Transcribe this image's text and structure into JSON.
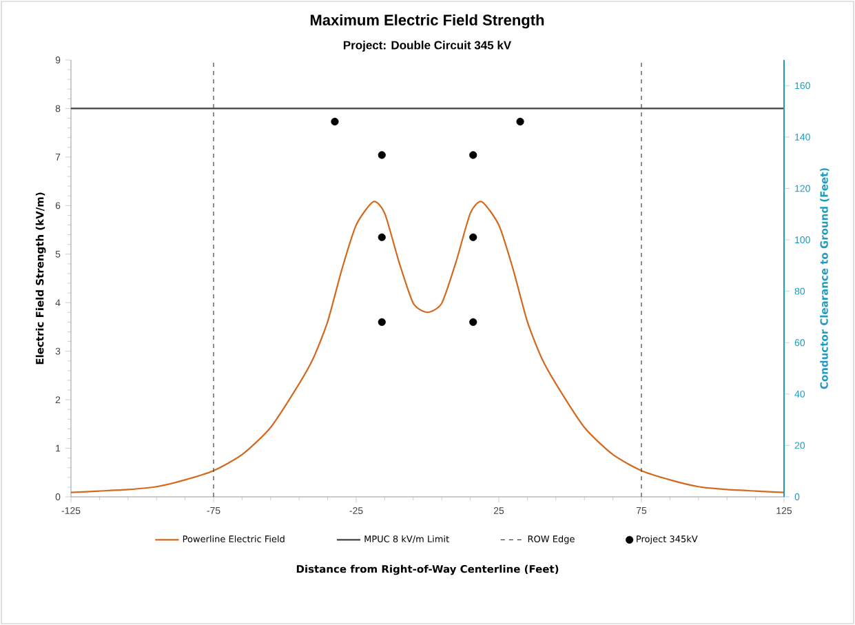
{
  "chart_data": {
    "type": "line",
    "title": "Maximum Electric Field Strength",
    "subtitle": "Project: Double Circuit 345 kV",
    "xlabel": "Distance from Right-of-Way Centerline (Feet)",
    "ylabel": "Electric Field Strength (kV/m)",
    "y2label": "Conductor Clearance to Ground (Feet)",
    "xlim": [
      -125,
      125
    ],
    "xticks": [
      -125,
      -75,
      -25,
      25,
      75,
      125
    ],
    "ylim": [
      0,
      9
    ],
    "yticks": [
      0,
      1,
      2,
      3,
      4,
      5,
      6,
      7,
      8,
      9
    ],
    "y2lim": [
      0,
      170
    ],
    "y2ticks": [
      0,
      20,
      40,
      60,
      80,
      100,
      120,
      140,
      160
    ],
    "legend": "bottom",
    "series": [
      {
        "name": "Powerline Electric Field",
        "color": "#d2691e",
        "x": [
          -125,
          -115,
          -105,
          -95,
          -85,
          -75,
          -65,
          -55,
          -45,
          -40,
          -35,
          -30,
          -25,
          -19,
          -15,
          -10,
          -5,
          0,
          5,
          10,
          15,
          19,
          25,
          30,
          35,
          40,
          45,
          55,
          65,
          75,
          85,
          95,
          105,
          115,
          125
        ],
        "values": [
          0.09,
          0.12,
          0.15,
          0.21,
          0.35,
          0.54,
          0.87,
          1.43,
          2.33,
          2.86,
          3.61,
          4.69,
          5.6,
          6.08,
          5.84,
          4.84,
          3.99,
          3.8,
          3.99,
          4.84,
          5.84,
          6.08,
          5.6,
          4.69,
          3.61,
          2.86,
          2.33,
          1.43,
          0.87,
          0.54,
          0.35,
          0.21,
          0.15,
          0.12,
          0.09
        ]
      },
      {
        "name": "MPUC 8 kV/m Limit",
        "color": "#404040",
        "x": [
          -125,
          125
        ],
        "values": [
          8,
          8
        ]
      },
      {
        "name": "Project 345kV",
        "type": "scatter",
        "axis": "y2",
        "marker": "circle",
        "color": "#000000",
        "x": [
          -32.5,
          -16,
          -16,
          -16,
          16,
          16,
          16,
          32.5
        ],
        "values": [
          146,
          133,
          101,
          68,
          133,
          101,
          68,
          146
        ]
      }
    ],
    "ref_lines": [
      {
        "axis": "x",
        "value": -75,
        "label": "ROW Edge",
        "line_style": "dashed",
        "color": "#404040"
      },
      {
        "axis": "x",
        "value": 75,
        "line_style": "dashed",
        "color": "#404040"
      }
    ]
  }
}
